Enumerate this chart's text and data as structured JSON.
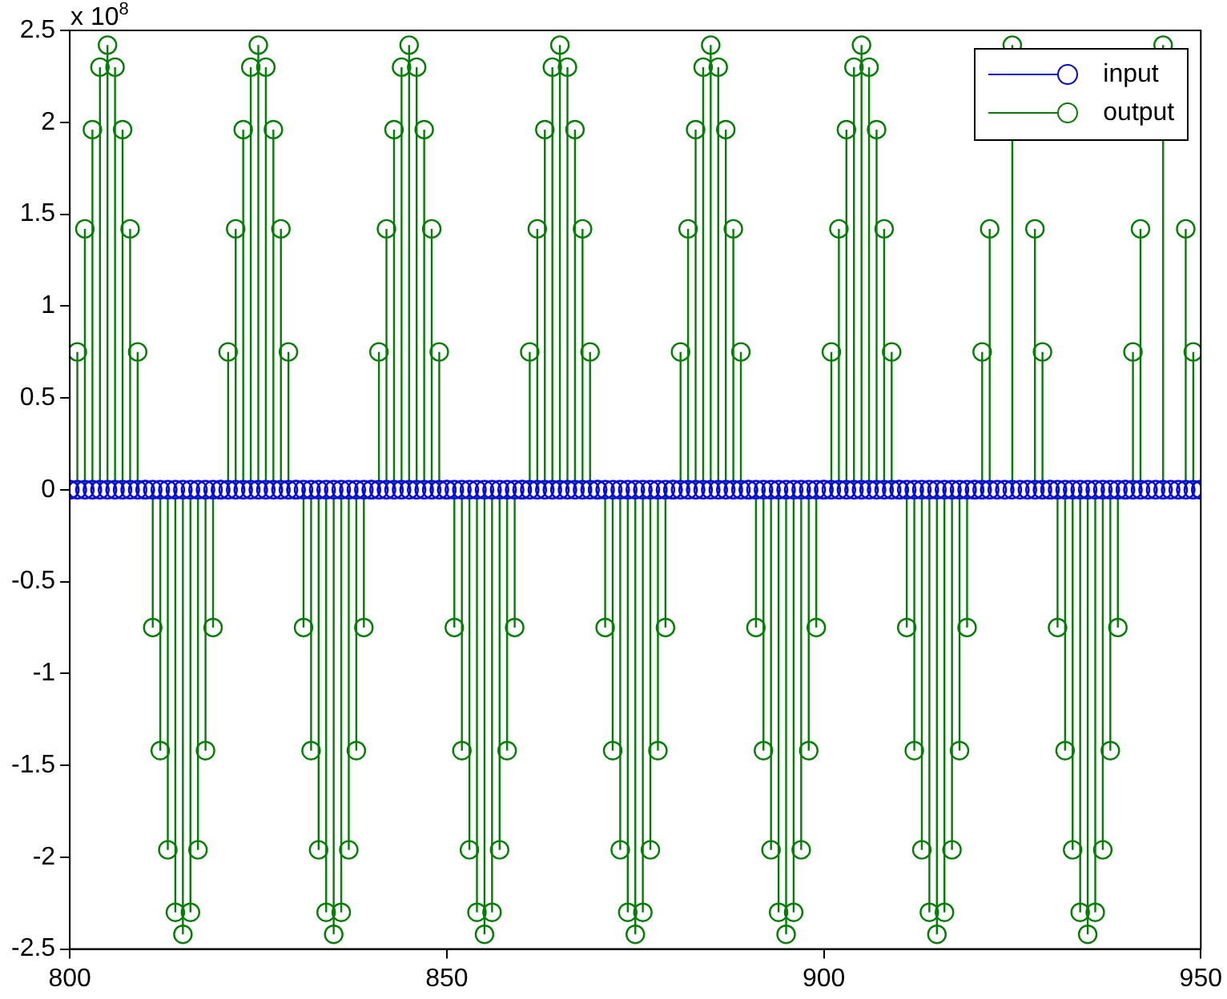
{
  "chart_data": {
    "type": "lollipop",
    "annotations": [
      "x 10$^{8}$"
    ],
    "x": [
      800,
      801,
      802,
      803,
      804,
      805,
      806,
      807,
      808,
      809,
      810,
      811,
      812,
      813,
      814,
      815,
      816,
      817,
      818,
      819,
      820,
      821,
      822,
      823,
      824,
      825,
      826,
      827,
      828,
      829,
      830,
      831,
      832,
      833,
      834,
      835,
      836,
      837,
      838,
      839,
      840,
      841,
      842,
      843,
      844,
      845,
      846,
      847,
      848,
      849,
      850,
      851,
      852,
      853,
      854,
      855,
      856,
      857,
      858,
      859,
      860,
      861,
      862,
      863,
      864,
      865,
      866,
      867,
      868,
      869,
      870,
      871,
      872,
      873,
      874,
      875,
      876,
      877,
      878,
      879,
      880,
      881,
      882,
      883,
      884,
      885,
      886,
      887,
      888,
      889,
      890,
      891,
      892,
      893,
      894,
      895,
      896,
      897,
      898,
      899,
      900,
      901,
      902,
      903,
      904,
      905,
      906,
      907,
      908,
      909,
      910,
      911,
      912,
      913,
      914,
      915,
      916,
      917,
      918,
      919,
      920,
      921,
      922,
      923,
      924,
      925,
      926,
      927,
      928,
      929,
      930,
      931,
      932,
      933,
      934,
      935,
      936,
      937,
      938,
      939,
      940,
      941,
      942,
      943,
      944,
      945,
      946,
      947,
      948,
      949,
      950
    ],
    "series": [
      {
        "name": "input",
        "color": "#0000ff",
        "values": [
          0,
          0,
          0,
          0,
          0,
          0,
          0,
          0,
          0,
          0,
          0,
          0,
          0,
          0,
          0,
          0,
          0,
          0,
          0,
          0,
          0,
          0,
          0,
          0,
          0,
          0,
          0,
          0,
          0,
          0,
          0,
          0,
          0,
          0,
          0,
          0,
          0,
          0,
          0,
          0,
          0,
          0,
          0,
          0,
          0,
          0,
          0,
          0,
          0,
          0,
          0,
          0,
          0,
          0,
          0,
          0,
          0,
          0,
          0,
          0,
          0,
          0,
          0,
          0,
          0,
          0,
          0,
          0,
          0,
          0,
          0,
          0,
          0,
          0,
          0,
          0,
          0,
          0,
          0,
          0,
          0,
          0,
          0,
          0,
          0,
          0,
          0,
          0,
          0,
          0,
          0,
          0,
          0,
          0,
          0,
          0,
          0,
          0,
          0,
          0,
          0,
          0,
          0,
          0,
          0,
          0,
          0,
          0,
          0,
          0,
          0,
          0,
          0,
          0,
          0,
          0,
          0,
          0,
          0,
          0,
          0,
          0,
          0,
          0,
          0,
          0,
          0,
          0,
          0,
          0,
          0,
          0,
          0,
          0,
          0,
          0,
          0,
          0,
          0,
          0,
          0,
          0,
          0,
          0,
          0,
          0,
          0,
          0,
          0,
          0,
          0
        ]
      },
      {
        "name": "output",
        "color": "#008000",
        "values": [
          0,
          0.75,
          1.42,
          1.96,
          2.3,
          2.42,
          2.3,
          1.96,
          1.42,
          0.75,
          0,
          -0.75,
          -1.42,
          -1.96,
          -2.3,
          -2.42,
          -2.3,
          -1.96,
          -1.42,
          -0.75,
          0,
          0.75,
          1.42,
          1.96,
          2.3,
          2.42,
          2.3,
          1.96,
          1.42,
          0.75,
          0,
          -0.75,
          -1.42,
          -1.96,
          -2.3,
          -2.42,
          -2.3,
          -1.96,
          -1.42,
          -0.75,
          0,
          0.75,
          1.42,
          1.96,
          2.3,
          2.42,
          2.3,
          1.96,
          1.42,
          0.75,
          0,
          -0.75,
          -1.42,
          -1.96,
          -2.3,
          -2.42,
          -2.3,
          -1.96,
          -1.42,
          -0.75,
          0,
          0.75,
          1.42,
          1.96,
          2.3,
          2.42,
          2.3,
          1.96,
          1.42,
          0.75,
          0,
          -0.75,
          -1.42,
          -1.96,
          -2.3,
          -2.42,
          -2.3,
          -1.96,
          -1.42,
          -0.75,
          0,
          0.75,
          1.42,
          1.96,
          2.3,
          2.42,
          2.3,
          1.96,
          1.42,
          0.75,
          0,
          -0.75,
          -1.42,
          -1.96,
          -2.3,
          -2.42,
          -2.3,
          -1.96,
          -1.42,
          -0.75,
          0,
          0.75,
          1.42,
          1.96,
          2.3,
          2.42,
          2.3,
          1.96,
          1.42,
          0.75,
          0,
          -0.75,
          -1.42,
          -1.96,
          -2.3,
          -2.42,
          -2.3,
          -1.96,
          -1.42,
          -0.75,
          0,
          0.75,
          1.42,
          null,
          null,
          2.42,
          null,
          null,
          1.42,
          0.75,
          0,
          -0.75,
          -1.42,
          -1.96,
          -2.3,
          -2.42,
          -2.3,
          -1.96,
          -1.42,
          -0.75,
          0,
          0.75,
          1.42,
          null,
          null,
          2.42,
          null,
          null,
          1.42,
          0.75,
          0
        ]
      }
    ],
    "xlim": [
      800,
      950
    ],
    "xticks": [
      800,
      850,
      900,
      950
    ],
    "ylim": [
      -2.5,
      2.5
    ],
    "yticks": [
      -2.5,
      -2,
      -1.5,
      -1,
      -0.5,
      0,
      0.5,
      1,
      1.5,
      2,
      2.5
    ],
    "grid": false,
    "legend": "top right",
    "marker": "circle",
    "line_style": "solid"
  }
}
